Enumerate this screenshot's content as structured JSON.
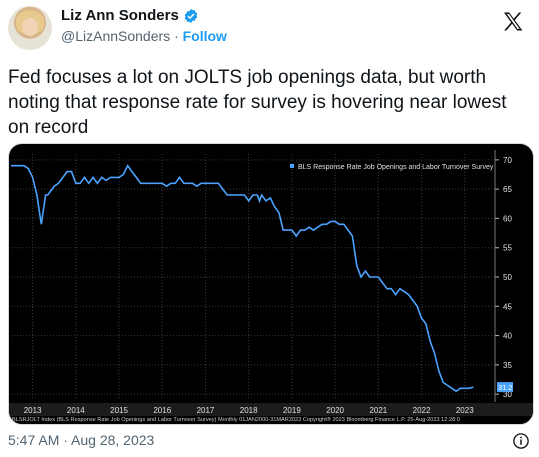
{
  "author": {
    "name": "Liz Ann Sonders",
    "handle": "@LizAnnSonders",
    "separator": "·",
    "follow_label": "Follow"
  },
  "tweet": {
    "text": "Fed focuses a lot on JOLTS job openings data, but worth noting that response rate for survey is hovering near lowest on record",
    "timestamp": "5:47 AM · Aug 28, 2023"
  },
  "icons": {
    "logo": "x-logo-icon",
    "verified": "verified-badge-icon",
    "info": "info-icon"
  },
  "colors": {
    "accent": "#1d9bf0",
    "chart_background": "#000000",
    "series_line": "#4aa3ff",
    "grid": "#3a3a3a"
  },
  "chart_data": {
    "type": "line",
    "title": "",
    "xlabel": "",
    "ylabel": "",
    "legend": {
      "text": "BLS Response Rate Job Openings and Labor Turnover Survey",
      "position": "top-right"
    },
    "x_ticks": [
      "2013",
      "2014",
      "2015",
      "2016",
      "2017",
      "2018",
      "2019",
      "2020",
      "2021",
      "2022",
      "2023"
    ],
    "y_ticks": [
      30,
      35,
      40,
      45,
      50,
      55,
      60,
      65,
      70
    ],
    "ylim": [
      29,
      71
    ],
    "xlim": [
      2012.5,
      2023.7
    ],
    "grid": true,
    "last_value_label": "31.2",
    "footer": "BLSRJOLT Index (BLS Response Rate Job Openings and Labor Turnover Survey)  Monthly 01JAN2000-31MAR2023   Copyright® 2023 Bloomberg Finance L.P.   25-Aug-2023 12:28:0",
    "series": [
      {
        "x": [
          2012.5,
          2012.6,
          2012.7,
          2012.8,
          2012.9,
          2013.0,
          2013.1,
          2013.2,
          2013.3,
          2013.35,
          2013.45,
          2013.5,
          2013.6,
          2013.7,
          2013.8,
          2013.9,
          2014.0,
          2014.1,
          2014.2,
          2014.3,
          2014.4,
          2014.5,
          2014.6,
          2014.7,
          2014.8,
          2014.9,
          2015.0,
          2015.1,
          2015.2,
          2015.3,
          2015.4,
          2015.5,
          2015.6,
          2015.7,
          2015.8,
          2015.9,
          2016.0,
          2016.1,
          2016.2,
          2016.3,
          2016.4,
          2016.5,
          2016.6,
          2016.7,
          2016.8,
          2016.9,
          2017.0,
          2017.1,
          2017.2,
          2017.3,
          2017.4,
          2017.5,
          2017.6,
          2017.7,
          2017.8,
          2017.9,
          2018.0,
          2018.1,
          2018.2,
          2018.25,
          2018.3,
          2018.4,
          2018.5,
          2018.6,
          2018.7,
          2018.8,
          2018.9,
          2019.0,
          2019.1,
          2019.2,
          2019.3,
          2019.4,
          2019.5,
          2019.6,
          2019.7,
          2019.8,
          2019.9,
          2020.0,
          2020.1,
          2020.2,
          2020.3,
          2020.4,
          2020.5,
          2020.6,
          2020.7,
          2020.8,
          2020.9,
          2021.0,
          2021.1,
          2021.2,
          2021.3,
          2021.4,
          2021.5,
          2021.6,
          2021.7,
          2021.8,
          2021.9,
          2022.0,
          2022.1,
          2022.2,
          2022.3,
          2022.4,
          2022.5,
          2022.6,
          2022.7,
          2022.8,
          2022.9,
          2023.0,
          2023.1,
          2023.2
        ],
        "y": [
          69,
          69,
          69,
          69,
          68.5,
          67,
          64,
          59,
          64,
          64,
          65,
          65.5,
          66,
          67,
          68,
          68,
          66,
          66,
          67,
          66,
          67,
          66,
          67,
          66.5,
          67,
          67,
          67,
          67.5,
          69,
          68,
          67,
          66,
          66,
          66,
          66,
          66,
          66,
          65.5,
          66,
          66,
          67,
          66,
          66,
          66,
          65.5,
          66,
          66,
          66,
          66,
          66,
          65,
          64,
          64,
          64,
          64,
          64,
          63,
          64,
          64,
          63,
          64,
          63,
          63.5,
          62,
          61,
          58,
          58,
          58,
          57,
          58,
          58,
          58.5,
          58,
          58.5,
          59,
          59,
          59.5,
          59.5,
          59,
          59,
          58,
          57,
          52,
          50,
          51,
          50,
          50,
          50,
          49,
          48,
          48,
          47,
          48,
          47.5,
          47,
          46,
          45,
          43,
          42,
          39,
          37,
          34,
          32,
          31.5,
          31,
          30.5,
          31,
          31,
          31,
          31.2
        ]
      }
    ]
  }
}
